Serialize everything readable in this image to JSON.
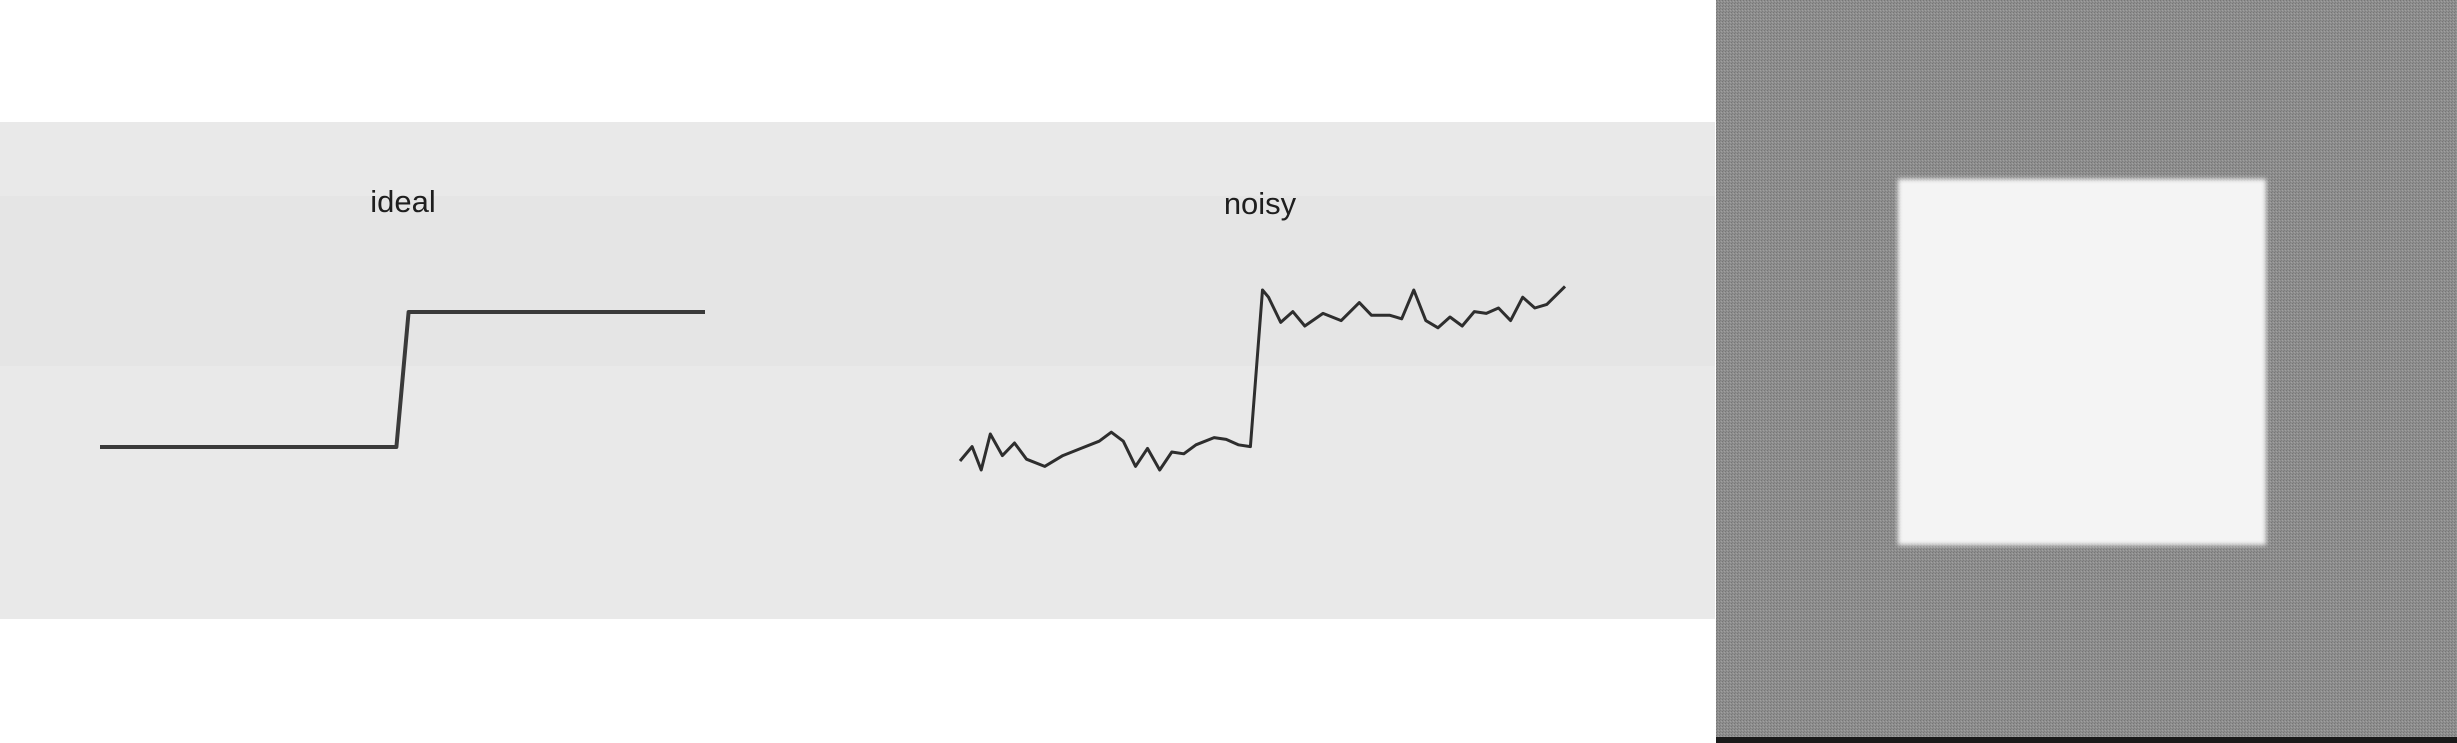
{
  "panels": {
    "ideal": {
      "label": "ideal",
      "signal": [
        [
          0.0,
          0.0
        ],
        [
          0.49,
          0.0
        ],
        [
          0.51,
          1.0
        ],
        [
          1.0,
          1.0
        ]
      ]
    },
    "noisy": {
      "label": "noisy",
      "signal": [
        [
          0.0,
          0.05
        ],
        [
          0.02,
          0.13
        ],
        [
          0.035,
          0.0
        ],
        [
          0.05,
          0.2
        ],
        [
          0.07,
          0.08
        ],
        [
          0.09,
          0.15
        ],
        [
          0.11,
          0.06
        ],
        [
          0.14,
          0.02
        ],
        [
          0.17,
          0.08
        ],
        [
          0.2,
          0.12
        ],
        [
          0.23,
          0.16
        ],
        [
          0.25,
          0.21
        ],
        [
          0.27,
          0.16
        ],
        [
          0.29,
          0.02
        ],
        [
          0.31,
          0.12
        ],
        [
          0.33,
          0.0
        ],
        [
          0.35,
          0.1
        ],
        [
          0.37,
          0.09
        ],
        [
          0.39,
          0.14
        ],
        [
          0.42,
          0.18
        ],
        [
          0.44,
          0.17
        ],
        [
          0.46,
          0.14
        ],
        [
          0.48,
          0.13
        ],
        [
          0.5,
          1.0
        ],
        [
          0.51,
          0.96
        ],
        [
          0.53,
          0.82
        ],
        [
          0.55,
          0.88
        ],
        [
          0.57,
          0.8
        ],
        [
          0.6,
          0.87
        ],
        [
          0.63,
          0.83
        ],
        [
          0.66,
          0.93
        ],
        [
          0.68,
          0.86
        ],
        [
          0.71,
          0.86
        ],
        [
          0.73,
          0.84
        ],
        [
          0.75,
          1.0
        ],
        [
          0.77,
          0.83
        ],
        [
          0.79,
          0.79
        ],
        [
          0.81,
          0.85
        ],
        [
          0.83,
          0.8
        ],
        [
          0.85,
          0.88
        ],
        [
          0.87,
          0.87
        ],
        [
          0.89,
          0.9
        ],
        [
          0.91,
          0.83
        ],
        [
          0.93,
          0.96
        ],
        [
          0.95,
          0.9
        ],
        [
          0.97,
          0.92
        ],
        [
          1.0,
          1.02
        ]
      ]
    },
    "image": {
      "background": "#8a8a8a",
      "square": "#f4f4f4"
    }
  }
}
